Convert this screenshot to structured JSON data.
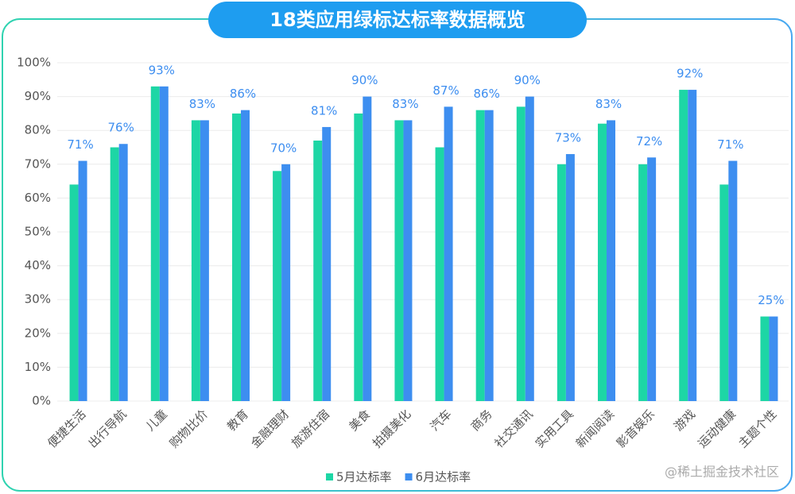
{
  "chart_data": {
    "type": "bar",
    "title": "18类应用绿标达标率数据概览",
    "categories": [
      "便捷生活",
      "出行导航",
      "儿童",
      "购物比价",
      "教育",
      "金融理财",
      "旅游住宿",
      "美食",
      "拍摄美化",
      "汽车",
      "商务",
      "社交通讯",
      "实用工具",
      "新闻阅读",
      "影音娱乐",
      "游戏",
      "运动健康",
      "主题个性"
    ],
    "series": [
      {
        "name": "5月达标率",
        "color": "#1dd6a5",
        "values": [
          64,
          75,
          93,
          83,
          85,
          68,
          77,
          85,
          83,
          75,
          86,
          87,
          70,
          82,
          70,
          92,
          64,
          25
        ]
      },
      {
        "name": "6月达标率",
        "color": "#3d8ef0",
        "values": [
          71,
          76,
          93,
          83,
          86,
          70,
          81,
          90,
          83,
          87,
          86,
          90,
          73,
          83,
          72,
          92,
          71,
          25
        ],
        "value_labels": [
          "71%",
          "76%",
          "93%",
          "83%",
          "86%",
          "70%",
          "81%",
          "90%",
          "83%",
          "87%",
          "86%",
          "90%",
          "73%",
          "83%",
          "72%",
          "92%",
          "71%",
          "25%"
        ]
      }
    ],
    "ylim": [
      0,
      100
    ],
    "yticks": [
      {
        "value": 0,
        "label": "0%"
      },
      {
        "value": 10,
        "label": "10%"
      },
      {
        "value": 20,
        "label": "20%"
      },
      {
        "value": 30,
        "label": "30%"
      },
      {
        "value": 40,
        "label": "40%"
      },
      {
        "value": 50,
        "label": "50%"
      },
      {
        "value": 60,
        "label": "60%"
      },
      {
        "value": 70,
        "label": "70%"
      },
      {
        "value": 80,
        "label": "80%"
      },
      {
        "value": 90,
        "label": "90%"
      },
      {
        "value": 100,
        "label": "100%"
      }
    ],
    "grid": true,
    "watermark": "@稀土掘金技术社区"
  }
}
